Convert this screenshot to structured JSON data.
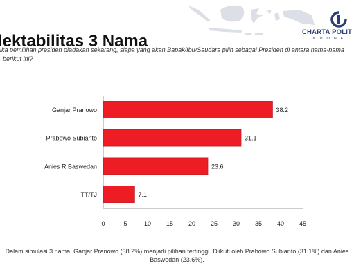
{
  "header": {
    "title": "lektabilitas 3 Nama",
    "logo_name": "CHARTA POLIT",
    "logo_sub": "INDONE"
  },
  "question": {
    "line1": "ika pemilihan presiden diadakan sekarang, siapa yang akan Bapak/Ibu/Saudara pilih sebagai Presiden di antara nama-nama",
    "line2": "berikut ini?"
  },
  "caption": {
    "line1": "Dalam simulasi 3 nama, Ganjar Pranowo (38.2%) menjadi pilihan tertinggi. Diikuti oleh Prabowo Subianto (31.1%) dan Anies",
    "line2": "Baswedan (23.6%)."
  },
  "colors": {
    "bar": "#ee1c24",
    "bar_stroke": "#b0151b",
    "logo": "#2b3e78",
    "map": "#dcdfe6"
  },
  "chart_data": {
    "type": "bar",
    "orientation": "horizontal",
    "categories": [
      "Ganjar Pranowo",
      "Prabowo Subianto",
      "Anies R Baswedan",
      "TT/TJ"
    ],
    "values": [
      38.2,
      31.1,
      23.6,
      7.1
    ],
    "value_labels": [
      "38.2",
      "31.1",
      "23.6",
      "7.1"
    ],
    "xticks": [
      "0",
      "5",
      "10",
      "15",
      "20",
      "25",
      "30",
      "35",
      "40",
      "45"
    ],
    "xlim": [
      0,
      45
    ],
    "grid": false,
    "legend": "none"
  }
}
